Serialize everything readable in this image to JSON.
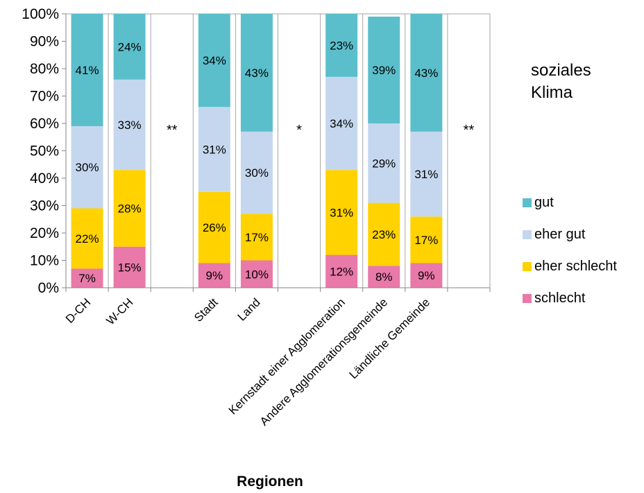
{
  "chart_data": {
    "type": "bar",
    "stacked": true,
    "categories": [
      "D-CH",
      "W-CH",
      "",
      "Stadt",
      "Land",
      "",
      "Kernstadt einer Agglomeration",
      "Andere Agglomerationsgemeinde",
      "Ländliche Gemeinde",
      ""
    ],
    "series": [
      {
        "name": "schlecht",
        "color": "#E879A8",
        "values": [
          7,
          15,
          null,
          9,
          10,
          null,
          12,
          8,
          9,
          null
        ],
        "labels": [
          "7%",
          "15%",
          "",
          "9%",
          "10%",
          "",
          "12%",
          "8%",
          "9%",
          ""
        ]
      },
      {
        "name": "eher schlecht",
        "color": "#FFD200",
        "values": [
          22,
          28,
          null,
          26,
          17,
          null,
          31,
          23,
          17,
          null
        ],
        "labels": [
          "22%",
          "28%",
          "",
          "26%",
          "17%",
          "",
          "31%",
          "23%",
          "17%",
          ""
        ]
      },
      {
        "name": "eher gut",
        "color": "#C5D7EE",
        "values": [
          30,
          33,
          null,
          31,
          30,
          null,
          34,
          29,
          31,
          null
        ],
        "labels": [
          "30%",
          "33%",
          "",
          "31%",
          "30%",
          "",
          "34%",
          "29%",
          "31%",
          ""
        ]
      },
      {
        "name": "gut",
        "color": "#5BBFCB",
        "values": [
          41,
          24,
          null,
          34,
          43,
          null,
          23,
          39,
          43,
          null
        ],
        "labels": [
          "41%",
          "24%",
          "",
          "34%",
          "43%",
          "",
          "23%",
          "39%",
          "43%",
          ""
        ]
      }
    ],
    "significance": [
      "",
      "",
      "**",
      "",
      "",
      "*",
      "",
      "",
      "",
      "**"
    ],
    "ylim": [
      0,
      100
    ],
    "y_ticks": [
      "0%",
      "10%",
      "20%",
      "30%",
      "40%",
      "50%",
      "60%",
      "70%",
      "80%",
      "90%",
      "100%"
    ],
    "xlabel": "Regionen",
    "ylabel": "",
    "annotation": [
      "soziales",
      "Klima"
    ],
    "legend_order": [
      "gut",
      "eher gut",
      "eher schlecht",
      "schlecht"
    ],
    "legend_position": "right",
    "grid": "vertical"
  }
}
